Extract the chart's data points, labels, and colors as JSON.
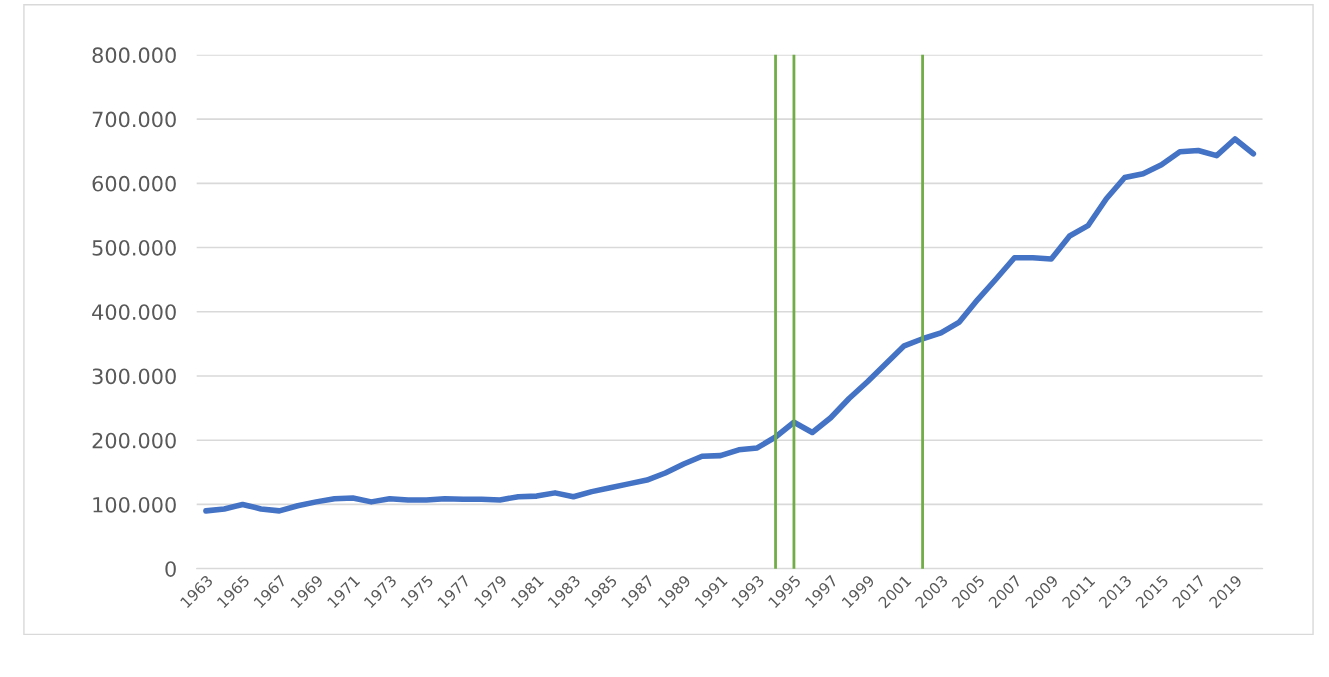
{
  "chart_data": {
    "type": "line",
    "x": [
      1963,
      1964,
      1965,
      1966,
      1967,
      1968,
      1969,
      1970,
      1971,
      1972,
      1973,
      1974,
      1975,
      1976,
      1977,
      1978,
      1979,
      1980,
      1981,
      1982,
      1983,
      1984,
      1985,
      1986,
      1987,
      1988,
      1989,
      1990,
      1991,
      1992,
      1993,
      1994,
      1995,
      1996,
      1997,
      1998,
      1999,
      2000,
      2001,
      2002,
      2003,
      2004,
      2005,
      2006,
      2007,
      2008,
      2009,
      2010,
      2011,
      2012,
      2013,
      2014,
      2015,
      2016,
      2017,
      2018,
      2019,
      2020
    ],
    "series": [
      {
        "color": "#4472c4",
        "values": [
          90000,
          93000,
          100000,
          93000,
          90000,
          98000,
          104000,
          109000,
          110000,
          104000,
          109000,
          107000,
          107000,
          109000,
          108000,
          108000,
          107000,
          112000,
          113000,
          118000,
          112000,
          120000,
          126000,
          132000,
          138000,
          149000,
          163000,
          175000,
          176000,
          185000,
          188000,
          205000,
          228000,
          212000,
          235000,
          265000,
          291000,
          319000,
          347000,
          358000,
          367000,
          384000,
          419000,
          451000,
          484000,
          484000,
          482000,
          518000,
          534000,
          576000,
          609000,
          615000,
          629000,
          649000,
          651000,
          643000,
          669000,
          646000
        ]
      }
    ],
    "xlim": [
      1962.5,
      2020.5
    ],
    "xticks": [
      1963,
      1965,
      1967,
      1969,
      1971,
      1973,
      1975,
      1977,
      1979,
      1981,
      1983,
      1985,
      1987,
      1989,
      1991,
      1993,
      1995,
      1997,
      1999,
      2001,
      2003,
      2005,
      2007,
      2009,
      2011,
      2013,
      2015,
      2017,
      2019
    ],
    "ylim": [
      0,
      800000
    ],
    "yticks": [
      {
        "value": 0,
        "label": "0"
      },
      {
        "value": 100000,
        "label": "100.000"
      },
      {
        "value": 200000,
        "label": "200.000"
      },
      {
        "value": 300000,
        "label": "300.000"
      },
      {
        "value": 400000,
        "label": "400.000"
      },
      {
        "value": 500000,
        "label": "500.000"
      },
      {
        "value": 600000,
        "label": "600.000"
      },
      {
        "value": 700000,
        "label": "700.000"
      },
      {
        "value": 800000,
        "label": "800.000"
      }
    ],
    "grid": "y",
    "line_style": "solid",
    "ref_lines": [
      {
        "axis": "x",
        "value": 1994,
        "color": "#70ad47"
      },
      {
        "axis": "x",
        "value": 1995,
        "color": "#70ad47"
      },
      {
        "axis": "x",
        "value": 2002,
        "color": "#70ad47"
      }
    ]
  }
}
